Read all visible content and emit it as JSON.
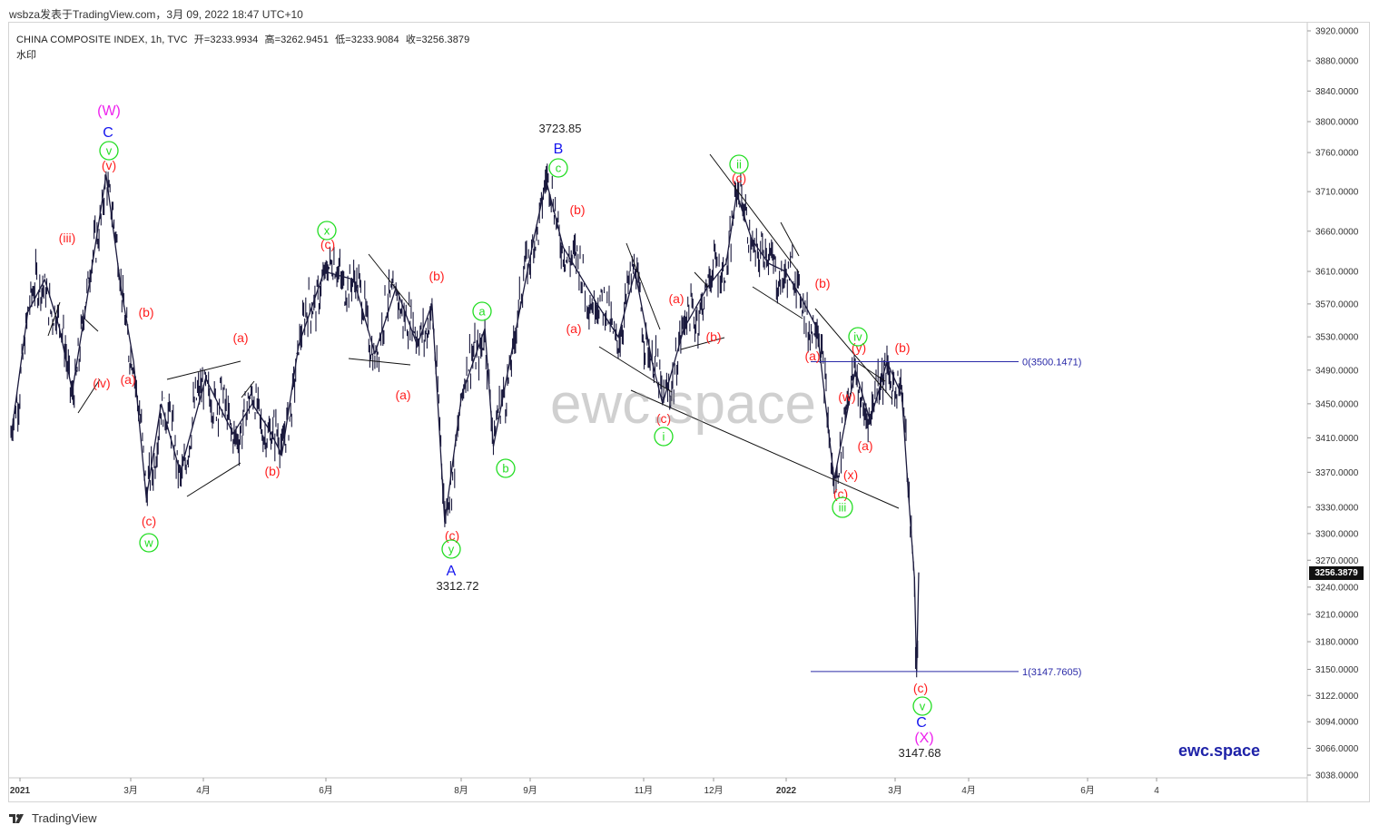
{
  "header": {
    "publisher": "wsbza发表于TradingView.com，3月 09, 2022 18:47 UTC+10"
  },
  "symbol": {
    "name": "CHINA COMPOSITE INDEX, 1h, TVC",
    "open": "开=3233.9934",
    "high": "高=3262.9451",
    "low": "低=3233.9084",
    "close": "收=3256.3879",
    "watermark_label": "水印"
  },
  "watermark": "ewc.space",
  "brand": "ewc.space",
  "footer": {
    "logo_text": "TradingView"
  },
  "current_price": "3256.3879",
  "colors": {
    "candles": "#1b1a3e",
    "red_label": "#ff1f1f",
    "green_label": "#22dd22",
    "blue_label": "#1515ee",
    "magenta_label": "#ee22ee",
    "fib_line": "#2a2aa8"
  },
  "chart_data": {
    "type": "line",
    "title": "CHINA COMPOSITE INDEX, 1h, TVC",
    "ylim": [
      3038,
      3920
    ],
    "y_axis_scale": "log",
    "y_ticks": [
      "3920.0000",
      "3880.0000",
      "3840.0000",
      "3800.0000",
      "3760.0000",
      "3710.0000",
      "3660.0000",
      "3610.0000",
      "3570.0000",
      "3530.0000",
      "3490.0000",
      "3450.0000",
      "3410.0000",
      "3370.0000",
      "3330.0000",
      "3300.0000",
      "3270.0000",
      "3240.0000",
      "3210.0000",
      "3180.0000",
      "3150.0000",
      "3122.0000",
      "3094.0000",
      "3066.0000",
      "3038.0000"
    ],
    "x_ticks": [
      "2021",
      "3月",
      "4月",
      "6月",
      "8月",
      "9月",
      "11月",
      "12月",
      "2022",
      "3月",
      "4月",
      "6月",
      "4"
    ],
    "series": [
      {
        "values": [
          {
            "x": "2021-01-04",
            "y": 3410
          },
          {
            "x": "2021-01-12",
            "y": 3560
          },
          {
            "x": "2021-01-20",
            "y": 3600
          },
          {
            "x": "2021-01-27",
            "y": 3540
          },
          {
            "x": "2021-02-02",
            "y": 3465
          },
          {
            "x": "2021-02-08",
            "y": 3560
          },
          {
            "x": "2021-02-18",
            "y": 3731
          },
          {
            "x": "2021-02-25",
            "y": 3590
          },
          {
            "x": "2021-03-03",
            "y": 3500
          },
          {
            "x": "2021-03-09",
            "y": 3340
          },
          {
            "x": "2021-03-16",
            "y": 3450
          },
          {
            "x": "2021-03-25",
            "y": 3370
          },
          {
            "x": "2021-04-06",
            "y": 3480
          },
          {
            "x": "2021-04-19",
            "y": 3415
          },
          {
            "x": "2021-04-28",
            "y": 3450
          },
          {
            "x": "2021-05-06",
            "y": 3420
          },
          {
            "x": "2021-05-12",
            "y": 3390
          },
          {
            "x": "2021-05-20",
            "y": 3520
          },
          {
            "x": "2021-06-01",
            "y": 3610
          },
          {
            "x": "2021-06-15",
            "y": 3600
          },
          {
            "x": "2021-06-25",
            "y": 3510
          },
          {
            "x": "2021-07-05",
            "y": 3590
          },
          {
            "x": "2021-07-15",
            "y": 3520
          },
          {
            "x": "2021-07-22",
            "y": 3570
          },
          {
            "x": "2021-07-28",
            "y": 3312.72
          },
          {
            "x": "2021-08-05",
            "y": 3460
          },
          {
            "x": "2021-08-16",
            "y": 3540
          },
          {
            "x": "2021-08-20",
            "y": 3400
          },
          {
            "x": "2021-08-30",
            "y": 3530
          },
          {
            "x": "2021-09-08",
            "y": 3650
          },
          {
            "x": "2021-09-14",
            "y": 3723.85
          },
          {
            "x": "2021-09-22",
            "y": 3640
          },
          {
            "x": "2021-10-08",
            "y": 3570
          },
          {
            "x": "2021-10-18",
            "y": 3530
          },
          {
            "x": "2021-10-26",
            "y": 3610
          },
          {
            "x": "2021-11-03",
            "y": 3500
          },
          {
            "x": "2021-11-08",
            "y": 3450
          },
          {
            "x": "2021-11-18",
            "y": 3540
          },
          {
            "x": "2021-11-29",
            "y": 3590
          },
          {
            "x": "2021-12-08",
            "y": 3620
          },
          {
            "x": "2021-12-13",
            "y": 3708
          },
          {
            "x": "2021-12-20",
            "y": 3650
          },
          {
            "x": "2021-12-28",
            "y": 3620
          },
          {
            "x": "2022-01-05",
            "y": 3610
          },
          {
            "x": "2022-01-12",
            "y": 3580
          },
          {
            "x": "2022-01-20",
            "y": 3540
          },
          {
            "x": "2022-01-28",
            "y": 3361
          },
          {
            "x": "2022-02-07",
            "y": 3490
          },
          {
            "x": "2022-02-14",
            "y": 3430
          },
          {
            "x": "2022-02-22",
            "y": 3500
          },
          {
            "x": "2022-03-01",
            "y": 3460
          },
          {
            "x": "2022-03-04",
            "y": 3350
          },
          {
            "x": "2022-03-07",
            "y": 3250
          },
          {
            "x": "2022-03-08",
            "y": 3147.68
          },
          {
            "x": "2022-03-09",
            "y": 3256.39
          }
        ]
      }
    ],
    "fib_levels": [
      {
        "label": "0(3500.1471)",
        "value": 3500.1471
      },
      {
        "label": "1(3147.7605)",
        "value": 3147.7605
      }
    ],
    "price_annotations": [
      {
        "text": "3723.85",
        "value": 3723.85
      },
      {
        "text": "3312.72",
        "value": 3312.72
      },
      {
        "text": "3147.68",
        "value": 3147.68
      }
    ],
    "wave_labels": [
      {
        "text": "(W)",
        "color": "magenta"
      },
      {
        "text": "C",
        "color": "blue"
      },
      {
        "text": "v",
        "color": "green-circle"
      },
      {
        "text": "(v)",
        "color": "red"
      },
      {
        "text": "(iii)",
        "color": "red"
      },
      {
        "text": "(iv)",
        "color": "red"
      },
      {
        "text": "(a)",
        "color": "red"
      },
      {
        "text": "(b)",
        "color": "red"
      },
      {
        "text": "(c)",
        "color": "red"
      },
      {
        "text": "w",
        "color": "green-circle"
      },
      {
        "text": "(a)",
        "color": "red"
      },
      {
        "text": "(b)",
        "color": "red"
      },
      {
        "text": "x",
        "color": "green-circle"
      },
      {
        "text": "(c)",
        "color": "red"
      },
      {
        "text": "(b)",
        "color": "red"
      },
      {
        "text": "(a)",
        "color": "red"
      },
      {
        "text": "(c)",
        "color": "red"
      },
      {
        "text": "y",
        "color": "green-circle"
      },
      {
        "text": "A",
        "color": "blue"
      },
      {
        "text": "a",
        "color": "green-circle"
      },
      {
        "text": "b",
        "color": "green-circle"
      },
      {
        "text": "B",
        "color": "blue"
      },
      {
        "text": "c",
        "color": "green-circle"
      },
      {
        "text": "(b)",
        "color": "red"
      },
      {
        "text": "(a)",
        "color": "red"
      },
      {
        "text": "(a)",
        "color": "red"
      },
      {
        "text": "(b)",
        "color": "red"
      },
      {
        "text": "(c)",
        "color": "red"
      },
      {
        "text": "i",
        "color": "green-circle"
      },
      {
        "text": "ii",
        "color": "green-circle"
      },
      {
        "text": "(c)",
        "color": "red"
      },
      {
        "text": "(b)",
        "color": "red"
      },
      {
        "text": "(a)",
        "color": "red"
      },
      {
        "text": "(w)",
        "color": "red"
      },
      {
        "text": "(x)",
        "color": "red"
      },
      {
        "text": "(c)",
        "color": "red"
      },
      {
        "text": "iii",
        "color": "green-circle"
      },
      {
        "text": "(a)",
        "color": "red"
      },
      {
        "text": "(y)",
        "color": "red"
      },
      {
        "text": "iv",
        "color": "green-circle"
      },
      {
        "text": "(b)",
        "color": "red"
      },
      {
        "text": "(c)",
        "color": "red"
      },
      {
        "text": "v",
        "color": "green-circle"
      },
      {
        "text": "C",
        "color": "blue"
      },
      {
        "text": "(X)",
        "color": "magenta"
      }
    ]
  }
}
